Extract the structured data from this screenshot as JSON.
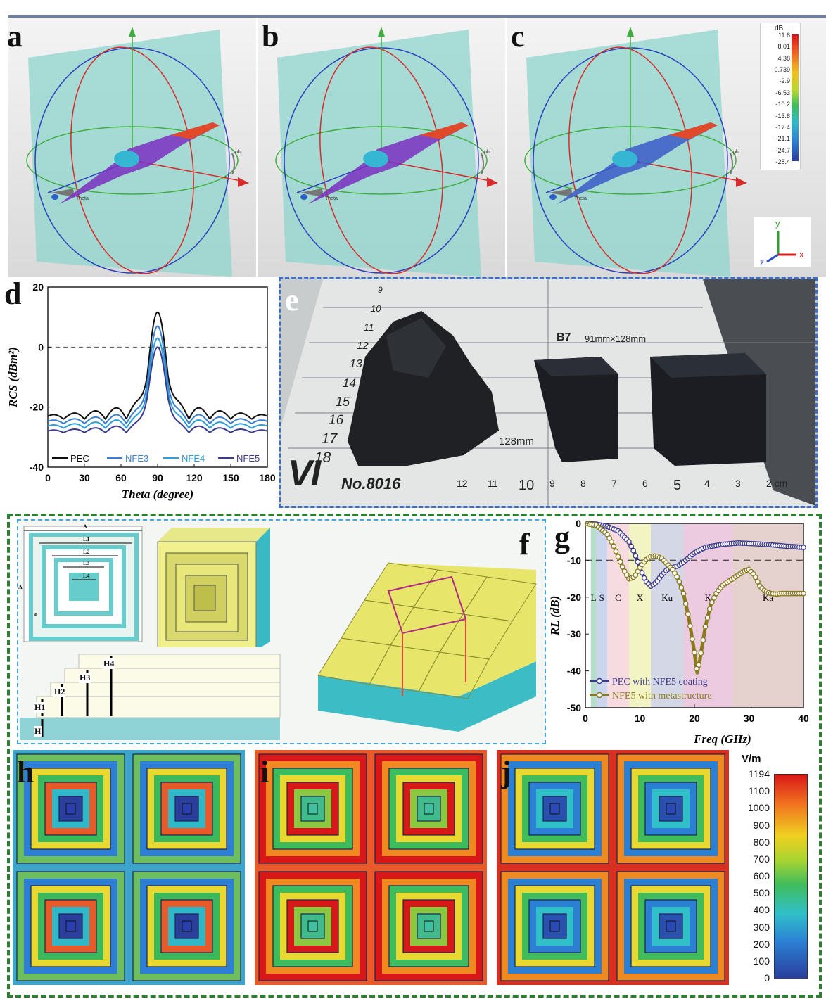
{
  "panel_labels": [
    "a",
    "b",
    "c",
    "d",
    "e",
    "f",
    "g",
    "h",
    "i",
    "j"
  ],
  "far_field": {
    "axis_labels": [
      "Theta",
      "phi"
    ],
    "colorbar": {
      "unit": "dB",
      "ticks": [
        "11.6",
        "8.01",
        "4.38",
        "0.739",
        "-2.9",
        "-6.53",
        "-10.2",
        "-13.8",
        "-17.4",
        "-21.1",
        "-24.7",
        "-28.4"
      ]
    },
    "triad": [
      "y",
      "x",
      "z"
    ]
  },
  "photo": {
    "ruler_left": [
      "9",
      "10",
      "11",
      "12",
      "13",
      "14",
      "15",
      "16",
      "17",
      "18"
    ],
    "ruler_bottom": [
      "12",
      "11",
      "10",
      "9",
      "8",
      "7",
      "6",
      "5",
      "4",
      "3",
      "2 cm"
    ],
    "card_code": "B7",
    "card_size": "91mm×128mm",
    "length_label": "128mm",
    "logo": "VI",
    "model": "No.8016"
  },
  "unit_cell": {
    "top_labels": [
      "A",
      "L1",
      "L2",
      "L3",
      "L4",
      "A",
      "a"
    ],
    "side_labels": [
      "H1",
      "H2",
      "H3",
      "H4",
      "H"
    ]
  },
  "field_colorbar": {
    "unit": "V/m",
    "ticks": [
      "1194",
      "1100",
      "1000",
      "900",
      "800",
      "700",
      "600",
      "500",
      "400",
      "300",
      "200",
      "100",
      "0"
    ]
  },
  "chart_data": [
    {
      "type": "line",
      "panel": "d",
      "xlabel": "Theta (degree)",
      "ylabel": "RCS (dBm²)",
      "xlim": [
        0,
        180
      ],
      "ylim": [
        -40,
        20
      ],
      "xticks": [
        0,
        30,
        60,
        90,
        120,
        150,
        180
      ],
      "yticks": [
        -40,
        -20,
        0,
        20
      ],
      "reference_line": 0,
      "legend": "bottom",
      "series": [
        {
          "name": "PEC",
          "color": "#111111",
          "peak": 11.6,
          "floor": -24,
          "lobe_top": -17
        },
        {
          "name": "NFE3",
          "color": "#3a7fd0",
          "peak": 7,
          "floor": -25.5,
          "lobe_top": -20
        },
        {
          "name": "NFE4",
          "color": "#2a9fd8",
          "peak": 3,
          "floor": -27,
          "lobe_top": -22
        },
        {
          "name": "NFE5",
          "color": "#3b3a8c",
          "peak": 0,
          "floor": -28.5,
          "lobe_top": -24.5
        }
      ]
    },
    {
      "type": "line",
      "panel": "g",
      "xlabel": "Freq (GHz)",
      "ylabel": "RL (dB)",
      "xlim": [
        0,
        40
      ],
      "ylim": [
        -50,
        0
      ],
      "xticks": [
        0,
        10,
        20,
        30,
        40
      ],
      "yticks": [
        0,
        -10,
        -20,
        -30,
        -40,
        -50
      ],
      "reference_line": -10,
      "legend": "bottom-left",
      "bands": [
        {
          "name": "L",
          "from": 1,
          "to": 2,
          "color": "#9fd3b8"
        },
        {
          "name": "S",
          "from": 2,
          "to": 4,
          "color": "#b8c8e8"
        },
        {
          "name": "C",
          "from": 4,
          "to": 8,
          "color": "#f3cfd6"
        },
        {
          "name": "X",
          "from": 8,
          "to": 12,
          "color": "#eef0b0"
        },
        {
          "name": "Ku",
          "from": 12,
          "to": 18,
          "color": "#c6c9dc"
        },
        {
          "name": "K",
          "from": 18,
          "to": 27,
          "color": "#e6b8d6"
        },
        {
          "name": "Ka",
          "from": 27,
          "to": 40,
          "color": "#dcc2bd"
        }
      ],
      "series": [
        {
          "name": "PEC with NFE5 coating",
          "color": "#3b3a8c",
          "x": [
            0,
            2,
            4,
            6,
            8,
            9,
            10,
            11,
            12,
            13,
            14,
            15,
            16,
            17,
            18,
            20,
            22,
            25,
            28,
            31,
            34,
            37,
            40
          ],
          "y": [
            0,
            -0.2,
            -0.8,
            -2,
            -5,
            -8,
            -12,
            -15.5,
            -17,
            -16,
            -14,
            -12.5,
            -12,
            -11.5,
            -10.5,
            -8,
            -6.5,
            -5.7,
            -5.3,
            -5.5,
            -5.8,
            -6.2,
            -6.5
          ]
        },
        {
          "name": "NFE5 with metastructure",
          "color": "#8a7a1e",
          "x": [
            0,
            2,
            4,
            5,
            6,
            7,
            8,
            9,
            10,
            11,
            12,
            13,
            14,
            15,
            16,
            17,
            18,
            19,
            20,
            20.5,
            21,
            22,
            23,
            24,
            25,
            26,
            27,
            28,
            29,
            30,
            31,
            32,
            33,
            34,
            35,
            36,
            38,
            40
          ],
          "y": [
            0,
            -0.5,
            -3,
            -5.5,
            -9,
            -12.5,
            -15,
            -14.5,
            -12,
            -10,
            -9,
            -8.8,
            -9.5,
            -11,
            -12.5,
            -15,
            -19,
            -26,
            -35,
            -40.5,
            -37,
            -28,
            -22,
            -19,
            -17,
            -16,
            -15,
            -14,
            -13,
            -12.5,
            -14,
            -17,
            -18.5,
            -19,
            -19.2,
            -19,
            -19,
            -19
          ]
        }
      ]
    }
  ]
}
